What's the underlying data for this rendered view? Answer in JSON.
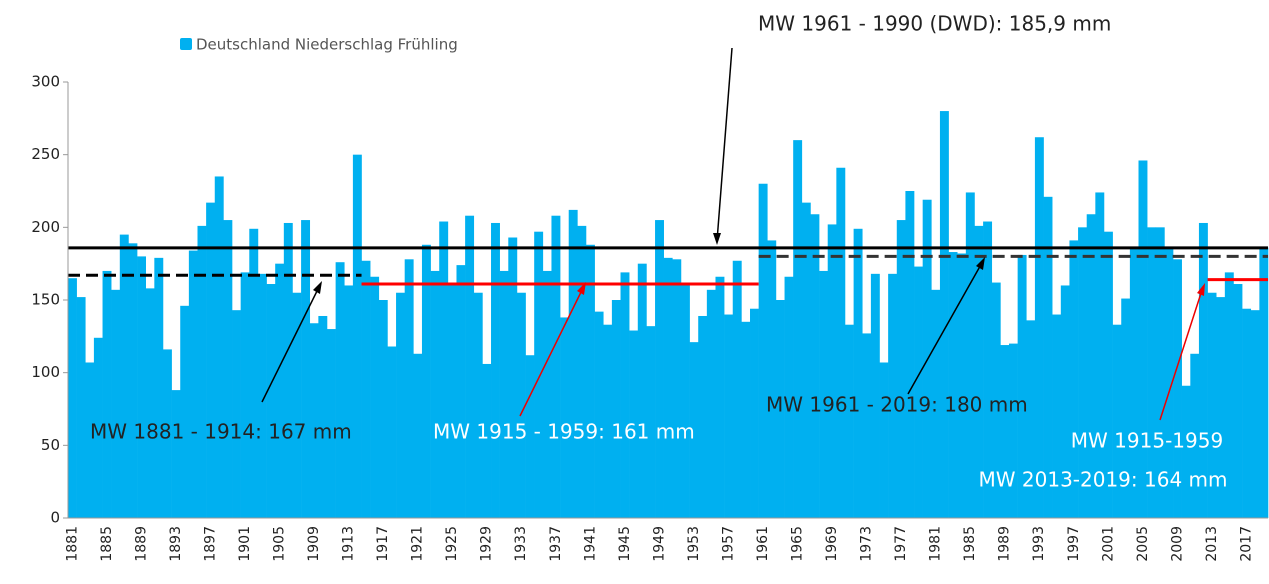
{
  "chart_data": {
    "type": "bar",
    "legend_label": "Deutschland Niederschlag Frühling",
    "color": "#00b0f0",
    "categories": [
      1881,
      null,
      null,
      null,
      1885,
      null,
      null,
      null,
      1889,
      null,
      null,
      null,
      1893,
      null,
      null,
      null,
      1897,
      null,
      null,
      null,
      1901,
      null,
      null,
      null,
      1905,
      null,
      null,
      null,
      1909,
      null,
      null,
      null,
      1913,
      null,
      null,
      null,
      1917,
      null,
      null,
      null,
      1921,
      null,
      null,
      null,
      1925,
      null,
      null,
      null,
      1929,
      null,
      null,
      null,
      1933,
      null,
      null,
      null,
      1937,
      null,
      null,
      null,
      1941,
      null,
      null,
      null,
      1945,
      null,
      null,
      null,
      1949,
      null,
      null,
      null,
      1953,
      null,
      null,
      null,
      1957,
      null,
      null,
      null,
      1961,
      null,
      null,
      null,
      1965,
      null,
      null,
      null,
      1969,
      null,
      null,
      null,
      1973,
      null,
      null,
      null,
      1977,
      null,
      null,
      null,
      1981,
      null,
      null,
      null,
      1985,
      null,
      null,
      null,
      1989,
      null,
      null,
      null,
      1993,
      null,
      null,
      null,
      1997,
      null,
      null,
      null,
      2001,
      null,
      null,
      null,
      2005,
      null,
      null,
      null,
      2009,
      null,
      null,
      null,
      2013,
      null,
      null,
      null,
      2017,
      null,
      null
    ],
    "values": [
      165,
      152,
      107,
      124,
      170,
      157,
      195,
      189,
      180,
      158,
      179,
      116,
      88,
      146,
      184,
      201,
      217,
      235,
      205,
      143,
      169,
      199,
      168,
      161,
      175,
      203,
      155,
      205,
      134,
      139,
      130,
      176,
      160,
      250,
      177,
      166,
      150,
      118,
      155,
      178,
      113,
      188,
      170,
      204,
      160,
      174,
      208,
      155,
      106,
      203,
      170,
      193,
      155,
      112,
      197,
      170,
      208,
      138,
      212,
      201,
      188,
      142,
      133,
      150,
      169,
      129,
      175,
      132,
      205,
      179,
      178,
      160,
      121,
      139,
      157,
      166,
      140,
      177,
      135,
      144,
      230,
      191,
      150,
      166,
      260,
      217,
      209,
      170,
      202,
      241,
      133,
      199,
      127,
      168,
      107,
      168,
      205,
      225,
      173,
      219,
      157,
      280,
      183,
      182,
      224,
      201,
      204,
      162,
      119,
      120,
      181,
      136,
      262,
      221,
      140,
      160,
      191,
      200,
      209,
      224,
      197,
      133,
      151,
      185,
      246,
      200,
      200,
      185,
      178,
      91,
      113,
      203,
      155,
      152,
      169,
      161,
      144,
      143,
      186
    ],
    "first_year": 1881,
    "ylim": [
      0,
      300
    ],
    "yticks": [
      0,
      50,
      100,
      150,
      200,
      250,
      300
    ],
    "reference_lines": [
      {
        "value": 185.9,
        "from": 1881,
        "to": 2019,
        "color": "#000000",
        "dashed": false
      },
      {
        "value": 167,
        "from": 1881,
        "to": 1914,
        "color": "#000000",
        "dashed": true
      },
      {
        "value": 161,
        "from": 1915,
        "to": 1960,
        "color": "#ff0000",
        "dashed": false
      },
      {
        "value": 180,
        "from": 1961,
        "to": 2019,
        "color": "#333333",
        "dashed": true
      },
      {
        "value": 164,
        "from": 2013,
        "to": 2019,
        "color": "#ff0000",
        "dashed": false
      }
    ],
    "annotations": [
      "MW 1961 - 1990 (DWD): 185,9 mm",
      "MW 1881 - 1914: 167 mm",
      "MW 1915 - 1959: 161 mm",
      "MW 1961 - 2019: 180 mm",
      "MW 1915-1959",
      "MW 2013-2019: 164 mm"
    ]
  }
}
